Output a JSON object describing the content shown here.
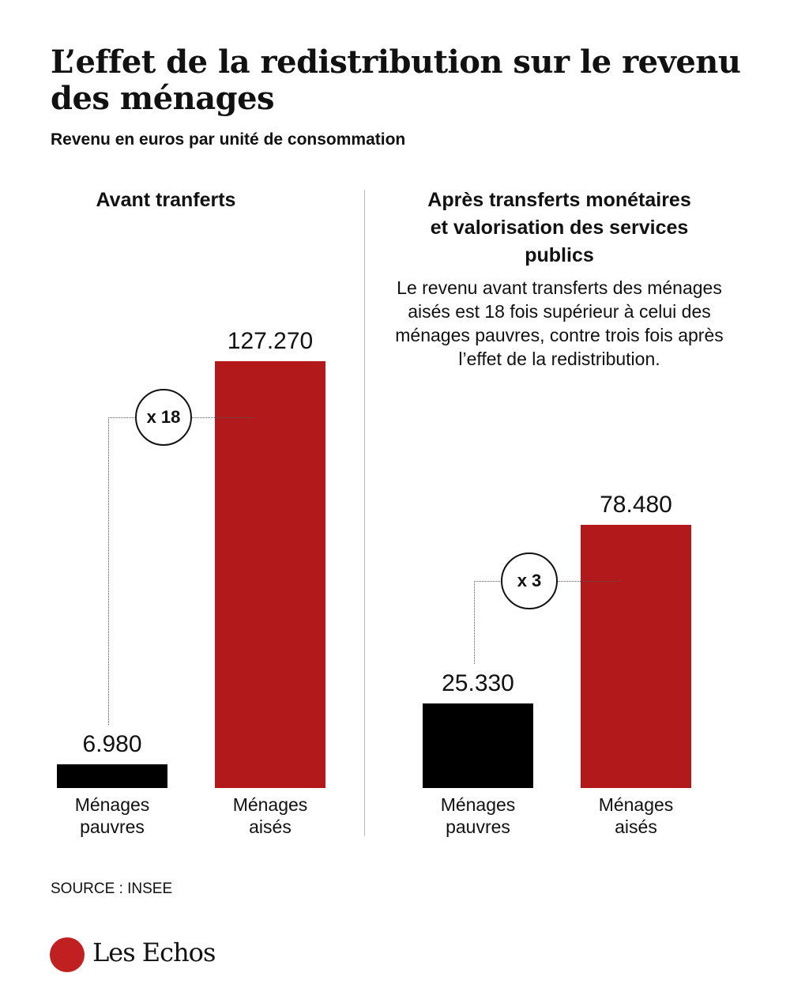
{
  "title": "L’effet de la redistribution sur le revenu des ménages",
  "subtitle": "Revenu en euros par unité de consommation",
  "note": "Le revenu avant transferts des ménages aisés est 18 fois supérieur à celui des ménages pauvres, contre trois fois après l’effet de la redistribution.",
  "source": "SOURCE : INSEE",
  "logo": "Les Echos",
  "chart_data": [
    {
      "type": "bar",
      "title": "Avant tranferts",
      "categories": [
        "Ménages pauvres",
        "Ménages aisés"
      ],
      "values": [
        6980,
        127270
      ],
      "value_labels": [
        "6.980",
        "127.270"
      ],
      "colors": [
        "#000000",
        "#b2191a"
      ],
      "annotation": "x 18"
    },
    {
      "type": "bar",
      "title": "Après transferts monétaires et valorisation des services publics",
      "categories": [
        "Ménages pauvres",
        "Ménages aisés"
      ],
      "values": [
        25330,
        78480
      ],
      "value_labels": [
        "25.330",
        "78.480"
      ],
      "colors": [
        "#000000",
        "#b2191a"
      ],
      "annotation": "x 3"
    }
  ]
}
